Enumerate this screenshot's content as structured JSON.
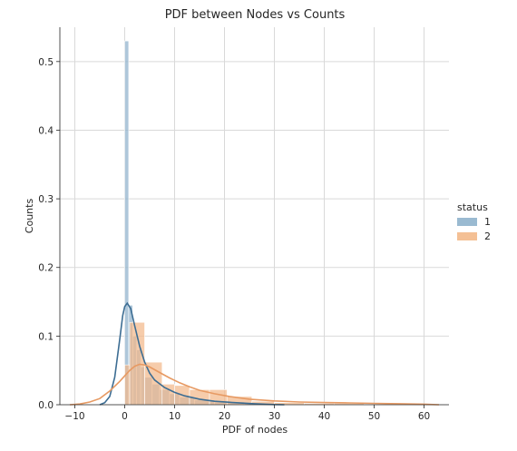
{
  "chart_data": {
    "type": "histogram",
    "title": "PDF between Nodes vs Counts",
    "xlabel": "PDF of nodes",
    "ylabel": "Counts",
    "xlim": [
      -13,
      65
    ],
    "ylim": [
      0,
      0.55
    ],
    "xticks": [
      -10,
      0,
      10,
      20,
      30,
      40,
      50,
      60
    ],
    "yticks": [
      0.0,
      0.1,
      0.2,
      0.3,
      0.4,
      0.5
    ],
    "grid": true,
    "legend": {
      "title": "status",
      "placement": "right",
      "entries": [
        {
          "label": "1",
          "color": "#8fb2cc"
        },
        {
          "label": "2",
          "color": "#f3b98a"
        }
      ]
    },
    "series": [
      {
        "name": "1",
        "color": "#8fb2cc",
        "line_color": "#3c6d93",
        "bins": [
          {
            "x0": 0.0,
            "x1": 0.8,
            "h": 0.53
          },
          {
            "x0": 0.8,
            "x1": 1.6,
            "h": 0.145
          },
          {
            "x0": 1.6,
            "x1": 2.4,
            "h": 0.1
          },
          {
            "x0": 2.4,
            "x1": 3.2,
            "h": 0.08
          },
          {
            "x0": 3.2,
            "x1": 4.0,
            "h": 0.055
          },
          {
            "x0": 4.0,
            "x1": 5.5,
            "h": 0.04
          },
          {
            "x0": 5.5,
            "x1": 7.0,
            "h": 0.03
          },
          {
            "x0": 7.0,
            "x1": 9.0,
            "h": 0.022
          },
          {
            "x0": 9.0,
            "x1": 11.0,
            "h": 0.016
          },
          {
            "x0": 11.0,
            "x1": 14.0,
            "h": 0.011
          },
          {
            "x0": 14.0,
            "x1": 18.0,
            "h": 0.007
          },
          {
            "x0": 18.0,
            "x1": 24.0,
            "h": 0.004
          },
          {
            "x0": 24.0,
            "x1": 30.0,
            "h": 0.002
          }
        ],
        "kde": [
          [
            -5,
            0.0
          ],
          [
            -4,
            0.003
          ],
          [
            -3,
            0.012
          ],
          [
            -2,
            0.04
          ],
          [
            -1,
            0.095
          ],
          [
            -0.4,
            0.13
          ],
          [
            0,
            0.143
          ],
          [
            0.5,
            0.148
          ],
          [
            1.2,
            0.14
          ],
          [
            2,
            0.115
          ],
          [
            3,
            0.085
          ],
          [
            4,
            0.062
          ],
          [
            5,
            0.046
          ],
          [
            6,
            0.036
          ],
          [
            8,
            0.025
          ],
          [
            10,
            0.018
          ],
          [
            12,
            0.013
          ],
          [
            15,
            0.008
          ],
          [
            18,
            0.005
          ],
          [
            22,
            0.003
          ],
          [
            26,
            0.0015
          ],
          [
            30,
            0.0003
          ],
          [
            32,
            0.0
          ]
        ]
      },
      {
        "name": "2",
        "color": "#f3b98a",
        "line_color": "#e79a63",
        "bins": [
          {
            "x0": 0.0,
            "x1": 1.0,
            "h": 0.058
          },
          {
            "x0": 1.0,
            "x1": 4.0,
            "h": 0.12
          },
          {
            "x0": 4.0,
            "x1": 7.5,
            "h": 0.062
          },
          {
            "x0": 7.5,
            "x1": 10.0,
            "h": 0.03
          },
          {
            "x0": 10.0,
            "x1": 13.0,
            "h": 0.028
          },
          {
            "x0": 13.0,
            "x1": 17.0,
            "h": 0.022
          },
          {
            "x0": 17.0,
            "x1": 20.5,
            "h": 0.022
          },
          {
            "x0": 20.5,
            "x1": 25.5,
            "h": 0.012
          },
          {
            "x0": 25.5,
            "x1": 30.0,
            "h": 0.005
          },
          {
            "x0": 30.0,
            "x1": 36.0,
            "h": 0.003
          },
          {
            "x0": 36.0,
            "x1": 42.0,
            "h": 0.002
          },
          {
            "x0": 42.0,
            "x1": 48.0,
            "h": 0.002
          },
          {
            "x0": 48.0,
            "x1": 54.0,
            "h": 0.001
          },
          {
            "x0": 54.0,
            "x1": 62.0,
            "h": 0.001
          }
        ],
        "kde": [
          [
            -11,
            0.0
          ],
          [
            -9,
            0.001
          ],
          [
            -7,
            0.004
          ],
          [
            -5,
            0.009
          ],
          [
            -3,
            0.02
          ],
          [
            -1,
            0.034
          ],
          [
            0,
            0.042
          ],
          [
            1,
            0.05
          ],
          [
            2,
            0.056
          ],
          [
            3,
            0.059
          ],
          [
            4,
            0.058
          ],
          [
            5,
            0.055
          ],
          [
            7,
            0.047
          ],
          [
            9,
            0.039
          ],
          [
            11,
            0.032
          ],
          [
            13,
            0.026
          ],
          [
            15,
            0.021
          ],
          [
            18,
            0.016
          ],
          [
            21,
            0.012
          ],
          [
            25,
            0.008
          ],
          [
            30,
            0.0055
          ],
          [
            35,
            0.004
          ],
          [
            40,
            0.0032
          ],
          [
            45,
            0.0026
          ],
          [
            50,
            0.002
          ],
          [
            55,
            0.0015
          ],
          [
            60,
            0.0008
          ],
          [
            63,
            0.0
          ]
        ]
      }
    ]
  }
}
